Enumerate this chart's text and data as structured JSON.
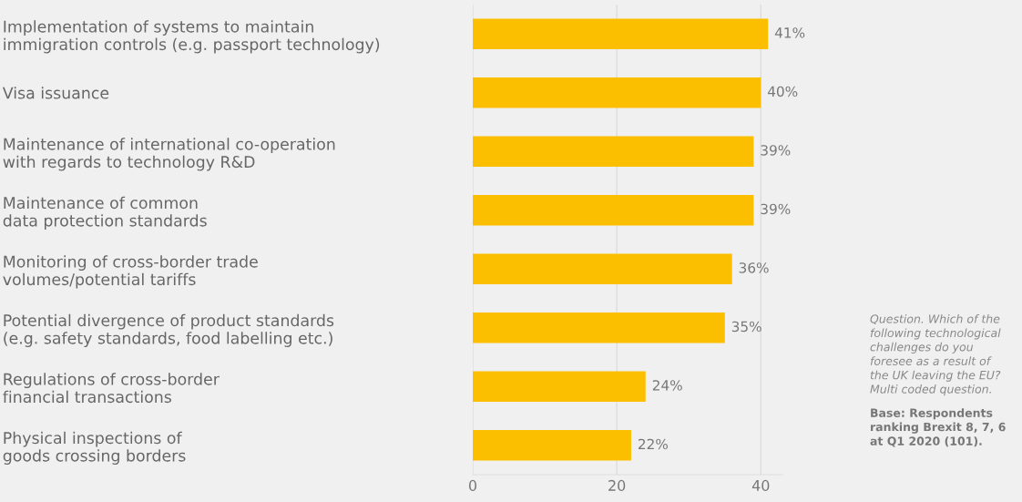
{
  "chart_data": {
    "type": "bar",
    "orientation": "horizontal",
    "categories": [
      "Implementation of systems to maintain\nimmigration controls (e.g. passport technology)",
      "Visa issuance",
      "Maintenance of international co-operation\nwith regards to technology R&D",
      "Maintenance of common\ndata protection standards",
      "Monitoring of cross-border trade\nvolumes/potential tariffs",
      "Potential divergence of product standards\n(e.g. safety standards, food labelling etc.)",
      "Regulations of cross-border\nfinancial transactions",
      "Physical inspections of\ngoods crossing borders"
    ],
    "values": [
      41,
      40,
      39,
      39,
      36,
      35,
      24,
      22
    ],
    "value_labels": [
      "41%",
      "40%",
      "39%",
      "39%",
      "36%",
      "35%",
      "24%",
      "22%"
    ],
    "color": "#fbbf00",
    "xlim": [
      0,
      43
    ],
    "xticks": [
      0,
      20,
      40
    ],
    "grid": "x",
    "annotations": [
      "Question. Which of the\nfollowing technological\nchallenges do you\nforesee as a result of\nthe UK leaving the EU?\nMulti coded question.",
      "Base: Respondents\nranking Brexit 8, 7, 6\nat Q1 2020 (101)."
    ]
  }
}
